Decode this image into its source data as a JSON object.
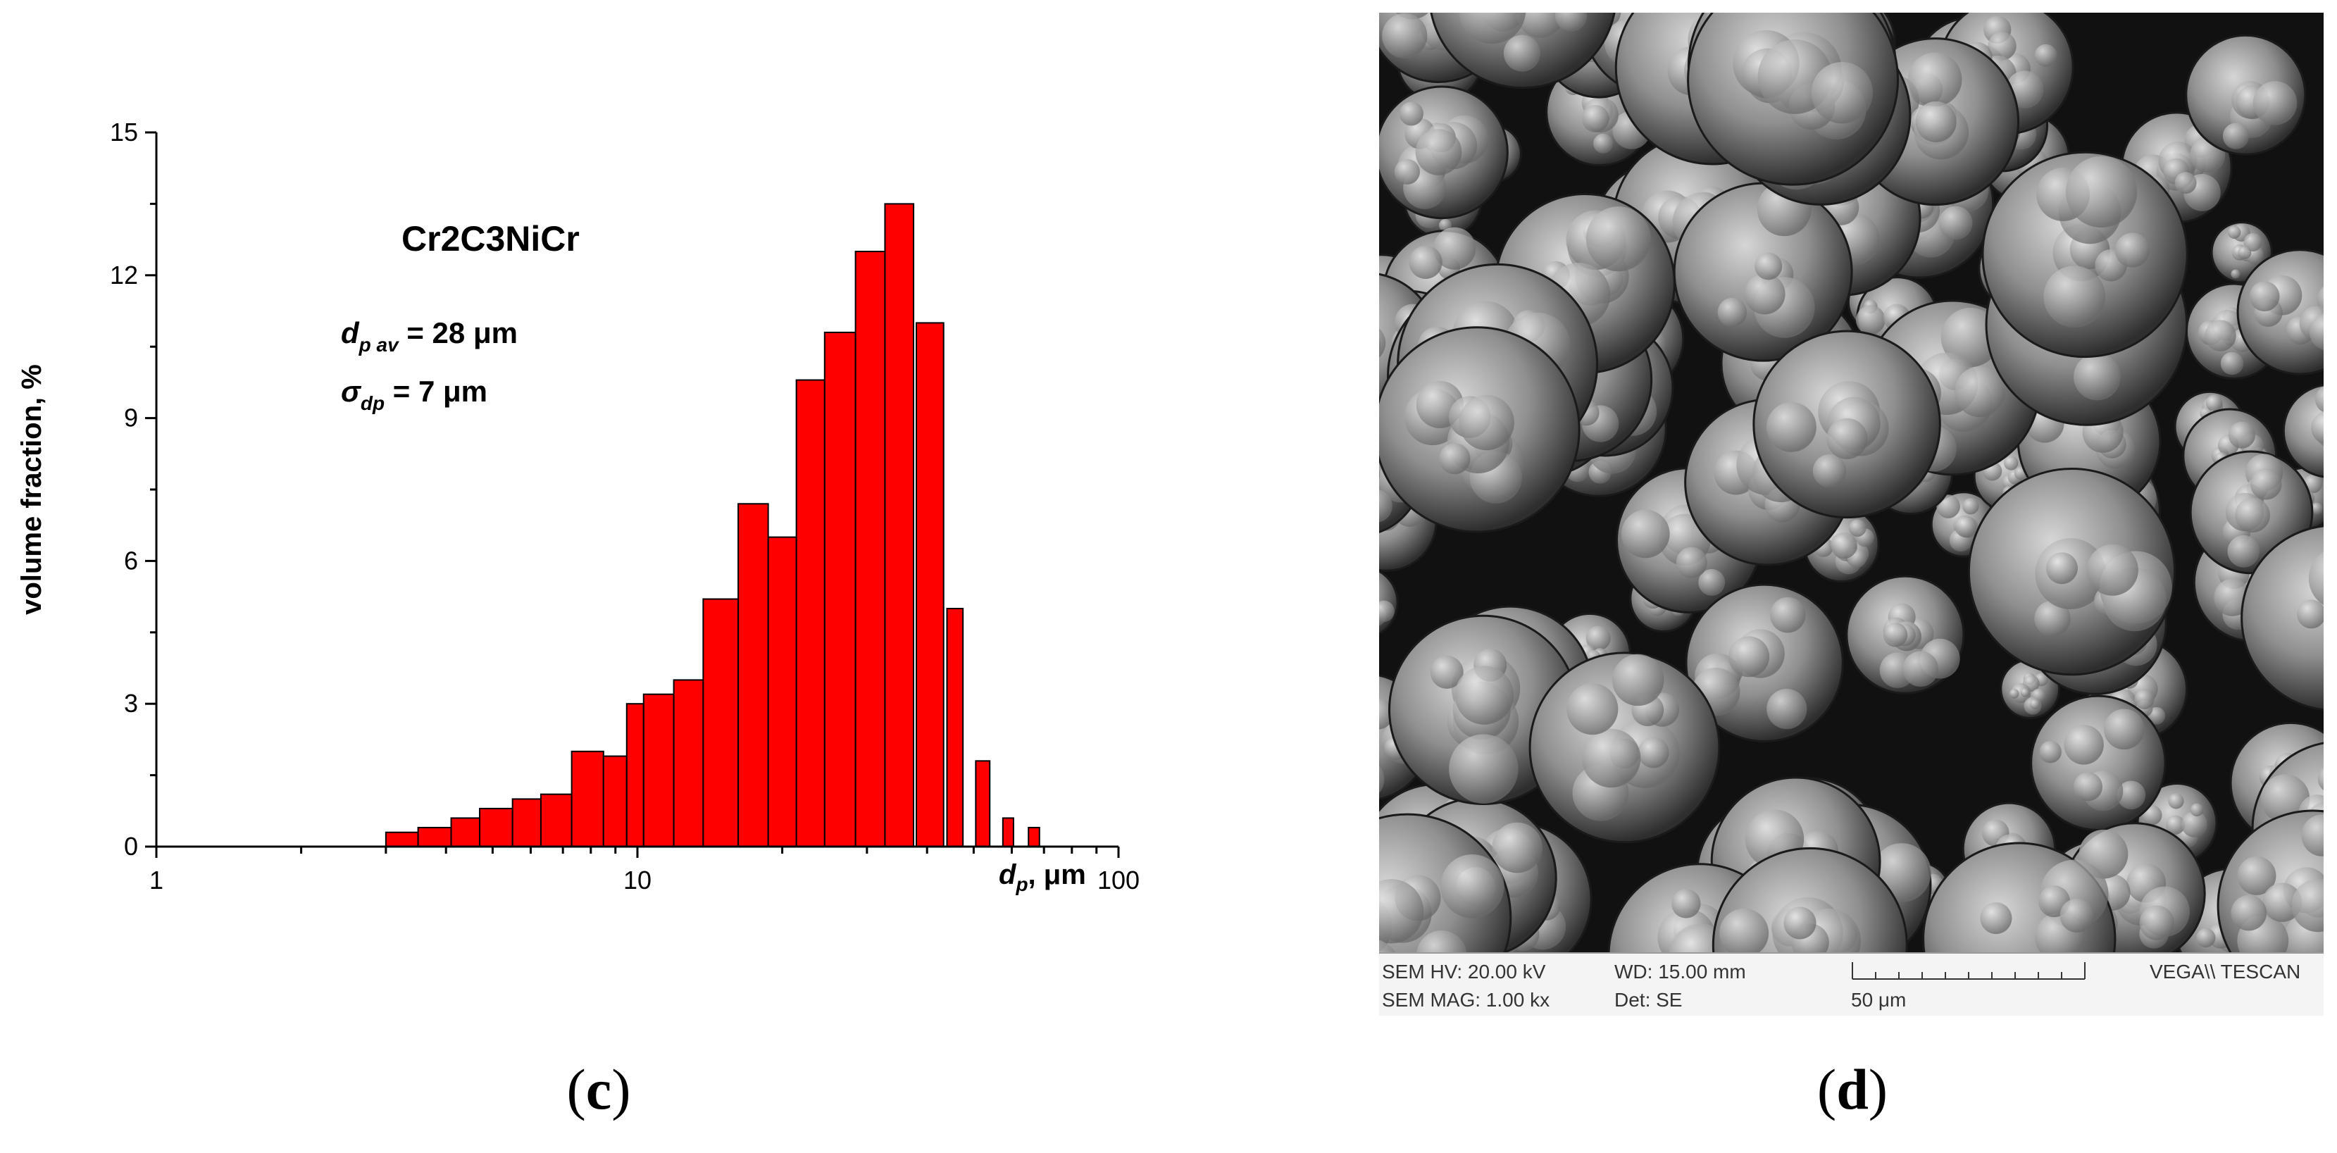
{
  "chart_data": {
    "type": "bar",
    "x_scale": "log",
    "xlim": [
      1,
      100
    ],
    "ylim": [
      0,
      15
    ],
    "xlabel": {
      "main": "d",
      "sub": "p",
      "suffix": ", μm"
    },
    "ylabel": "volume fraction, %",
    "x_ticks": [
      {
        "value": 1,
        "label": "1"
      },
      {
        "value": 10,
        "label": "10"
      },
      {
        "value": 100,
        "label": "100"
      }
    ],
    "y_ticks": [
      {
        "value": 0,
        "label": "0"
      },
      {
        "value": 3,
        "label": "3"
      },
      {
        "value": 6,
        "label": "6"
      },
      {
        "value": 9,
        "label": "9"
      },
      {
        "value": 12,
        "label": "12"
      },
      {
        "value": 15,
        "label": "15"
      }
    ],
    "bar_color": "#ff0000",
    "bars": [
      {
        "x0": 3.0,
        "x1": 3.5,
        "value": 0.3
      },
      {
        "x0": 3.5,
        "x1": 4.1,
        "value": 0.4
      },
      {
        "x0": 4.1,
        "x1": 4.7,
        "value": 0.6
      },
      {
        "x0": 4.7,
        "x1": 5.5,
        "value": 0.8
      },
      {
        "x0": 5.5,
        "x1": 6.3,
        "value": 1.0
      },
      {
        "x0": 6.3,
        "x1": 7.3,
        "value": 1.1
      },
      {
        "x0": 7.3,
        "x1": 8.5,
        "value": 2.0
      },
      {
        "x0": 8.5,
        "x1": 9.5,
        "value": 1.9
      },
      {
        "x0": 9.5,
        "x1": 10.3,
        "value": 3.0
      },
      {
        "x0": 10.3,
        "x1": 11.9,
        "value": 3.2
      },
      {
        "x0": 11.9,
        "x1": 13.7,
        "value": 3.5
      },
      {
        "x0": 13.7,
        "x1": 16.2,
        "value": 5.2
      },
      {
        "x0": 16.2,
        "x1": 18.7,
        "value": 7.2
      },
      {
        "x0": 18.7,
        "x1": 21.4,
        "value": 6.5
      },
      {
        "x0": 21.4,
        "x1": 24.5,
        "value": 9.8
      },
      {
        "x0": 24.5,
        "x1": 28.4,
        "value": 10.8
      },
      {
        "x0": 28.4,
        "x1": 32.7,
        "value": 12.5
      },
      {
        "x0": 32.7,
        "x1": 37.5,
        "value": 13.5
      },
      {
        "x0": 38.0,
        "x1": 43.3,
        "value": 11.0
      },
      {
        "x0": 44.0,
        "x1": 47.5,
        "value": 5.0
      },
      {
        "x0": 50.5,
        "x1": 54.0,
        "value": 1.8
      },
      {
        "x0": 57.5,
        "x1": 60.5,
        "value": 0.6
      },
      {
        "x0": 65.0,
        "x1": 68.5,
        "value": 0.4
      }
    ],
    "annotations": {
      "title": "Cr2C3NiCr",
      "mean": {
        "symbol": "d",
        "sub": "p av",
        "value": "= 28 μm"
      },
      "sigma": {
        "symbol": "σ",
        "sub": "dp",
        "value": "= 7 μm"
      }
    }
  },
  "panel_labels": {
    "left": "c",
    "right": "d"
  },
  "sem": {
    "hv": "SEM HV: 20.00 kV",
    "wd": "WD: 15.00 mm",
    "brand": "VEGA\\\\ TESCAN",
    "mag": "SEM MAG: 1.00 kx",
    "det": "Det: SE",
    "scale": "50 μm"
  }
}
